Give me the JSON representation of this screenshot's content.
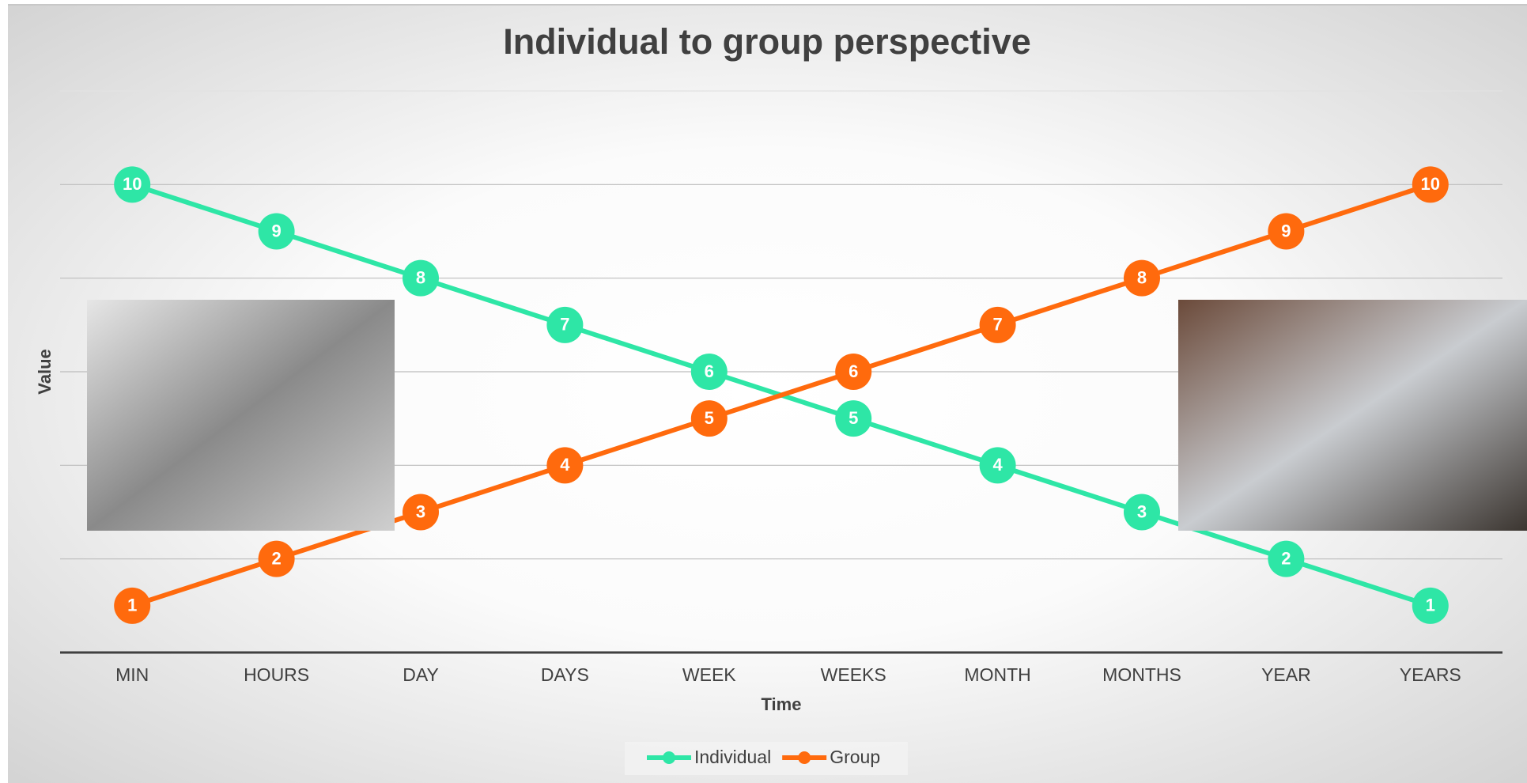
{
  "chart_data": {
    "type": "line",
    "title": "Individual to group perspective",
    "x_label": "Time",
    "y_label": "Value",
    "categories": [
      "MIN",
      "HOURS",
      "DAY",
      "DAYS",
      "WEEK",
      "WEEKS",
      "MONTH",
      "MONTHS",
      "YEAR",
      "YEARS"
    ],
    "series": [
      {
        "name": "Individual",
        "color": "#2ee6a6",
        "values": [
          10,
          9,
          8,
          7,
          6,
          5,
          4,
          3,
          2,
          1
        ]
      },
      {
        "name": "Group",
        "color": "#ff6a0d",
        "values": [
          1,
          2,
          3,
          4,
          5,
          6,
          7,
          8,
          9,
          10
        ]
      }
    ],
    "ylim": [
      0,
      12
    ],
    "yticks": [
      0,
      2,
      4,
      6,
      8,
      10,
      12
    ],
    "grid": true,
    "legend": "bottom"
  }
}
